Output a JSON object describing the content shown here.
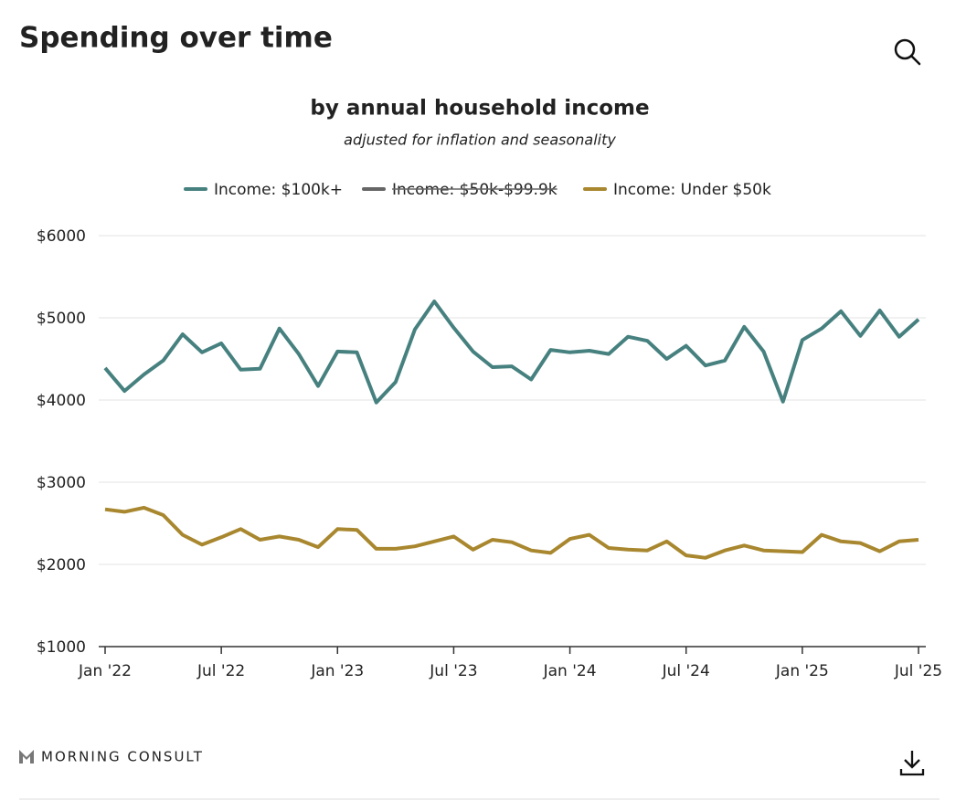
{
  "page_title": "Spending over time",
  "brand": "MORNING CONSULT",
  "chart_data": {
    "type": "line",
    "title": "by annual household income",
    "subtitle": "adjusted for inflation and seasonality",
    "categories": [
      "Jan '22",
      null,
      null,
      null,
      null,
      null,
      "Jul '22",
      null,
      null,
      null,
      null,
      null,
      "Jan '23",
      null,
      null,
      null,
      null,
      null,
      "Jul '23",
      null,
      null,
      null,
      null,
      null,
      "Jan '24",
      null,
      null,
      null,
      null,
      null,
      "Jul '24",
      null,
      null,
      null,
      null,
      null,
      "Jan '25",
      null,
      null,
      null,
      null,
      null,
      "Jul '25"
    ],
    "series": [
      {
        "name": "Income: $100k+",
        "color": "#46817f",
        "values": [
          4390,
          4110,
          4310,
          4480,
          4800,
          4580,
          4690,
          4370,
          4380,
          4870,
          4560,
          4170,
          4590,
          4580,
          3970,
          4220,
          4860,
          5200,
          4880,
          4590,
          4400,
          4410,
          4250,
          4610,
          4580,
          4600,
          4560,
          4770,
          4720,
          4500,
          4660,
          4420,
          4480,
          4890,
          4590,
          3980,
          4730,
          4870,
          5080,
          4780,
          5090,
          4770,
          4980
        ]
      },
      {
        "name": "Income: $50k-$99.9k",
        "color": "#666666",
        "hidden": true,
        "values": [
          null,
          null,
          null,
          null,
          null,
          null,
          null,
          null,
          null,
          null,
          null,
          null,
          null,
          null,
          null,
          null,
          null,
          null,
          null,
          null,
          null,
          null,
          null,
          null,
          null,
          null,
          null,
          null,
          null,
          null,
          null,
          null,
          null,
          null,
          null,
          null,
          null,
          null,
          null,
          null,
          null,
          null,
          null
        ]
      },
      {
        "name": "Income: Under $50k",
        "color": "#a8872f",
        "values": [
          2670,
          2640,
          2690,
          2600,
          2360,
          2240,
          2330,
          2430,
          2300,
          2340,
          2300,
          2210,
          2430,
          2420,
          2190,
          2190,
          2220,
          2280,
          2340,
          2180,
          2300,
          2270,
          2170,
          2140,
          2310,
          2360,
          2200,
          2180,
          2170,
          2280,
          2110,
          2080,
          2170,
          2230,
          2170,
          2160,
          2150,
          2360,
          2280,
          2260,
          2160,
          2280,
          2300
        ]
      }
    ],
    "ylim": [
      1000,
      6000
    ],
    "yticks": [
      {
        "value": 1000,
        "label": "$1000"
      },
      {
        "value": 2000,
        "label": "$2000"
      },
      {
        "value": 3000,
        "label": "$3000"
      },
      {
        "value": 4000,
        "label": "$4000"
      },
      {
        "value": 5000,
        "label": "$5000"
      },
      {
        "value": 6000,
        "label": "$6000"
      }
    ],
    "grid": true
  }
}
